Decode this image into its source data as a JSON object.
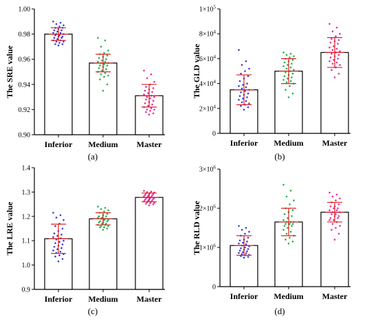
{
  "chart_data": [
    {
      "type": "bar",
      "panel_label": "(a)",
      "ylabel": "The SRE value",
      "categories": [
        "Inferior",
        "Medium",
        "Master"
      ],
      "ylim": [
        0.9,
        1.0
      ],
      "yticks": [
        0.9,
        0.92,
        0.94,
        0.96,
        0.98,
        1.0
      ],
      "ytick_labels": [
        "0.90",
        "0.92",
        "0.94",
        "0.96",
        "0.98",
        "1.00"
      ],
      "values": [
        0.98,
        0.957,
        0.931
      ],
      "error": [
        0.005,
        0.007,
        0.009
      ],
      "point_colors": [
        "#3b3bd6",
        "#22b14c",
        "#e0309a"
      ],
      "points": [
        [
          0.99,
          0.989,
          0.988,
          0.987,
          0.986,
          0.985,
          0.985,
          0.984,
          0.983,
          0.983,
          0.982,
          0.981,
          0.981,
          0.98,
          0.98,
          0.979,
          0.979,
          0.978,
          0.978,
          0.977,
          0.977,
          0.976,
          0.975,
          0.975,
          0.974,
          0.974,
          0.973,
          0.972,
          0.972,
          0.971
        ],
        [
          0.977,
          0.975,
          0.97,
          0.967,
          0.965,
          0.964,
          0.963,
          0.962,
          0.961,
          0.96,
          0.959,
          0.958,
          0.958,
          0.957,
          0.957,
          0.956,
          0.955,
          0.955,
          0.954,
          0.953,
          0.952,
          0.951,
          0.95,
          0.949,
          0.948,
          0.947,
          0.946,
          0.944,
          0.94,
          0.935
        ],
        [
          0.951,
          0.948,
          0.945,
          0.942,
          0.94,
          0.938,
          0.937,
          0.936,
          0.935,
          0.934,
          0.933,
          0.932,
          0.931,
          0.93,
          0.93,
          0.929,
          0.928,
          0.927,
          0.926,
          0.925,
          0.924,
          0.923,
          0.922,
          0.921,
          0.92,
          0.92,
          0.919,
          0.918,
          0.917,
          0.916
        ]
      ]
    },
    {
      "type": "bar",
      "panel_label": "(b)",
      "ylabel": "The GLD value",
      "categories": [
        "Inferior",
        "Medium",
        "Master"
      ],
      "ylim": [
        0,
        100000
      ],
      "yticks": [
        0,
        20000,
        40000,
        60000,
        80000,
        100000
      ],
      "ytick_labels": [
        "0",
        "2×10",
        "4×10",
        "6×10",
        "8×10",
        "1×10"
      ],
      "ytick_exponents": [
        "",
        "4",
        "4",
        "4",
        "4",
        "5"
      ],
      "values": [
        35000,
        50000,
        65000
      ],
      "error": [
        12000,
        10000,
        12000
      ],
      "point_colors": [
        "#3b3bd6",
        "#22b14c",
        "#e0309a"
      ],
      "points": [
        [
          67000,
          58000,
          55000,
          52000,
          50000,
          48000,
          46000,
          44000,
          42000,
          40000,
          39000,
          38000,
          37000,
          36000,
          35000,
          34000,
          33000,
          32000,
          31000,
          30000,
          29000,
          28000,
          27000,
          26000,
          25000,
          24000,
          23000,
          22000,
          21000,
          19000
        ],
        [
          65000,
          64000,
          63000,
          62000,
          61000,
          60000,
          59000,
          58000,
          57000,
          56000,
          55000,
          54000,
          53000,
          52000,
          51000,
          50000,
          49000,
          48000,
          47000,
          46000,
          45000,
          44000,
          43000,
          42000,
          41000,
          40000,
          38000,
          35000,
          32000,
          29000
        ],
        [
          88000,
          85000,
          82000,
          80000,
          78000,
          76000,
          75000,
          74000,
          73000,
          72000,
          70000,
          69000,
          68000,
          67000,
          66000,
          65000,
          64000,
          63000,
          62000,
          61000,
          60000,
          59000,
          58000,
          57000,
          56000,
          55000,
          53000,
          51000,
          48000,
          45000
        ]
      ]
    },
    {
      "type": "bar",
      "panel_label": "(c)",
      "ylabel": "The LRE value",
      "categories": [
        "Inferior",
        "Medium",
        "Master"
      ],
      "ylim": [
        0.9,
        1.4
      ],
      "yticks": [
        0.9,
        1.0,
        1.1,
        1.2,
        1.3,
        1.4
      ],
      "ytick_labels": [
        "0.9",
        "1.0",
        "1.1",
        "1.2",
        "1.3",
        "1.4"
      ],
      "values": [
        1.108,
        1.19,
        1.278
      ],
      "error": [
        0.06,
        0.025,
        0.018
      ],
      "point_colors": [
        "#3b3bd6",
        "#22b14c",
        "#e0309a"
      ],
      "points": [
        [
          1.215,
          1.205,
          1.195,
          1.185,
          1.17,
          1.16,
          1.15,
          1.14,
          1.13,
          1.125,
          1.12,
          1.115,
          1.11,
          1.105,
          1.1,
          1.095,
          1.09,
          1.085,
          1.08,
          1.075,
          1.07,
          1.065,
          1.06,
          1.055,
          1.05,
          1.045,
          1.04,
          1.035,
          1.025,
          1.015
        ],
        [
          1.24,
          1.235,
          1.23,
          1.225,
          1.22,
          1.215,
          1.21,
          1.205,
          1.2,
          1.2,
          1.195,
          1.195,
          1.19,
          1.19,
          1.185,
          1.185,
          1.18,
          1.18,
          1.175,
          1.175,
          1.17,
          1.17,
          1.165,
          1.165,
          1.16,
          1.16,
          1.155,
          1.155,
          1.15,
          1.145
        ],
        [
          1.305,
          1.302,
          1.3,
          1.298,
          1.296,
          1.294,
          1.292,
          1.29,
          1.288,
          1.286,
          1.284,
          1.282,
          1.28,
          1.278,
          1.276,
          1.275,
          1.274,
          1.272,
          1.27,
          1.268,
          1.266,
          1.264,
          1.262,
          1.26,
          1.258,
          1.256,
          1.254,
          1.252,
          1.25,
          1.245
        ]
      ]
    },
    {
      "type": "bar",
      "panel_label": "(d)",
      "ylabel": "The RLD value",
      "categories": [
        "Inferior",
        "Medium",
        "Master"
      ],
      "ylim": [
        0,
        3000000
      ],
      "yticks": [
        0,
        1000000,
        2000000,
        3000000
      ],
      "ytick_labels": [
        "0",
        "1×10",
        "2×10",
        "3×10"
      ],
      "ytick_exponents": [
        "",
        "6",
        "6",
        "6"
      ],
      "values": [
        1050000,
        1650000,
        1900000
      ],
      "error": [
        250000,
        350000,
        250000
      ],
      "point_colors": [
        "#3b3bd6",
        "#22b14c",
        "#e0309a"
      ],
      "points": [
        [
          1550000,
          1500000,
          1450000,
          1400000,
          1350000,
          1300000,
          1250000,
          1200000,
          1180000,
          1150000,
          1120000,
          1100000,
          1080000,
          1050000,
          1030000,
          1000000,
          980000,
          960000,
          940000,
          920000,
          900000,
          880000,
          860000,
          850000,
          830000,
          810000,
          800000,
          780000,
          760000,
          740000
        ],
        [
          2600000,
          2450000,
          2300000,
          2200000,
          2100000,
          2000000,
          1950000,
          1900000,
          1850000,
          1800000,
          1750000,
          1700000,
          1650000,
          1650000,
          1650000,
          1600000,
          1600000,
          1600000,
          1600000,
          1550000,
          1550000,
          1500000,
          1450000,
          1400000,
          1350000,
          1300000,
          1250000,
          1200000,
          1150000,
          1100000
        ],
        [
          2400000,
          2350000,
          2300000,
          2250000,
          2200000,
          2150000,
          2100000,
          2050000,
          2050000,
          2000000,
          2000000,
          1950000,
          1950000,
          1900000,
          1900000,
          1850000,
          1850000,
          1800000,
          1800000,
          1750000,
          1750000,
          1700000,
          1700000,
          1650000,
          1600000,
          1550000,
          1500000,
          1450000,
          1350000,
          1200000
        ]
      ]
    }
  ]
}
